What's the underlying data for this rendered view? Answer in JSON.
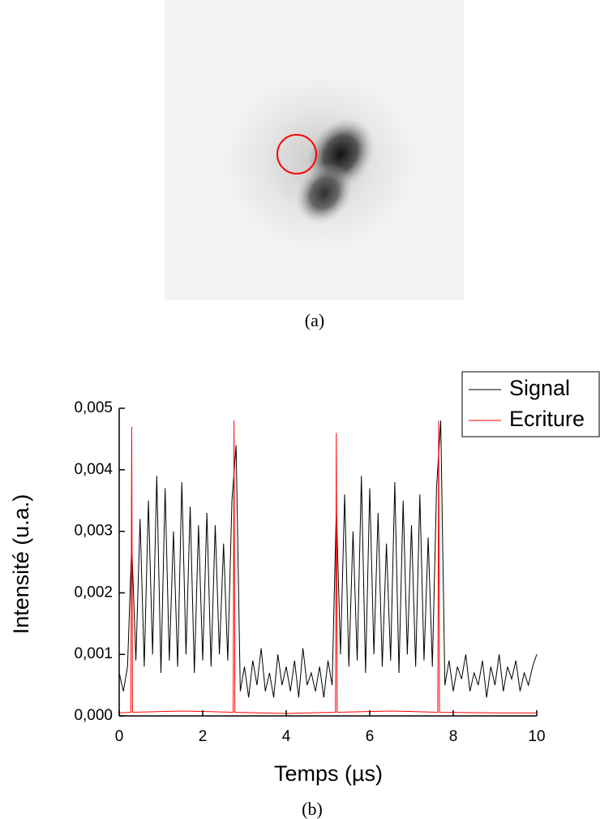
{
  "caption_a": "(a)",
  "chart_data": {
    "type": "line",
    "caption": "(b)",
    "xlabel": "Temps (µs)",
    "ylabel": "Intensité (u.a.)",
    "xlim": [
      0,
      10
    ],
    "xticks": [
      0,
      2,
      4,
      6,
      8,
      10
    ],
    "ylim": [
      0,
      0.005
    ],
    "yticks": [
      {
        "value": 0,
        "label": "0,000"
      },
      {
        "value": 0.001,
        "label": "0,001"
      },
      {
        "value": 0.002,
        "label": "0,002"
      },
      {
        "value": 0.003,
        "label": "0,003"
      },
      {
        "value": 0.004,
        "label": "0,004"
      },
      {
        "value": 0.005,
        "label": "0,005"
      }
    ],
    "legend": "upper right",
    "series": [
      {
        "name": "Signal",
        "color": "#000000",
        "x": [
          0,
          0.1,
          0.2,
          0.3,
          0.4,
          0.5,
          0.6,
          0.7,
          0.8,
          0.9,
          1,
          1.1,
          1.2,
          1.3,
          1.4,
          1.5,
          1.6,
          1.7,
          1.8,
          1.9,
          2,
          2.1,
          2.2,
          2.3,
          2.4,
          2.5,
          2.6,
          2.7,
          2.8,
          2.9,
          3,
          3.1,
          3.2,
          3.3,
          3.4,
          3.5,
          3.6,
          3.7,
          3.8,
          3.9,
          4,
          4.1,
          4.2,
          4.3,
          4.4,
          4.5,
          4.6,
          4.7,
          4.8,
          4.9,
          5,
          5.1,
          5.2,
          5.3,
          5.4,
          5.5,
          5.6,
          5.7,
          5.8,
          5.9,
          6,
          6.1,
          6.2,
          6.3,
          6.4,
          6.5,
          6.6,
          6.7,
          6.8,
          6.9,
          7,
          7.1,
          7.2,
          7.3,
          7.4,
          7.5,
          7.6,
          7.7,
          7.8,
          7.9,
          8,
          8.1,
          8.2,
          8.3,
          8.4,
          8.5,
          8.6,
          8.7,
          8.8,
          8.9,
          9,
          9.1,
          9.2,
          9.3,
          9.4,
          9.5,
          9.6,
          9.7,
          9.8,
          9.9,
          10
        ],
        "values": [
          0.0007,
          0.0004,
          0.0008,
          0.0028,
          0.0009,
          0.0032,
          0.0008,
          0.0035,
          0.001,
          0.0039,
          0.0007,
          0.0037,
          0.0009,
          0.003,
          0.0008,
          0.0038,
          0.001,
          0.0034,
          0.0007,
          0.0031,
          0.0009,
          0.0033,
          0.0008,
          0.0031,
          0.001,
          0.0028,
          0.0009,
          0.0035,
          0.0044,
          0.0004,
          0.0008,
          0.0003,
          0.0009,
          0.0005,
          0.0011,
          0.0004,
          0.0007,
          0.0003,
          0.001,
          0.0005,
          0.0008,
          0.0004,
          0.0009,
          0.0003,
          0.0011,
          0.0005,
          0.0007,
          0.0004,
          0.0008,
          0.0003,
          0.0009,
          0.0005,
          0.0034,
          0.001,
          0.0036,
          0.0008,
          0.003,
          0.0009,
          0.0039,
          0.0007,
          0.0037,
          0.001,
          0.0033,
          0.0008,
          0.0028,
          0.0009,
          0.0038,
          0.0007,
          0.0035,
          0.001,
          0.0031,
          0.0008,
          0.0036,
          0.0009,
          0.0029,
          0.0008,
          0.0037,
          0.0048,
          0.0005,
          0.0009,
          0.0004,
          0.0008,
          0.0006,
          0.001,
          0.0004,
          0.0007,
          0.0005,
          0.0009,
          0.0003,
          0.0008,
          0.0005,
          0.001,
          0.0004,
          0.0008,
          0.0006,
          0.0009,
          0.0004,
          0.0007,
          0.0005,
          0.0008,
          0.001
        ]
      },
      {
        "name": "Ecriture",
        "color": "#ff0000",
        "x": [
          0,
          0.28,
          0.3,
          0.32,
          1.5,
          2.73,
          2.75,
          2.77,
          4,
          5.18,
          5.2,
          5.22,
          6.5,
          7.63,
          7.65,
          7.67,
          9,
          10
        ],
        "values": [
          5e-05,
          6e-05,
          0.0047,
          6e-05,
          8e-05,
          6e-05,
          0.0048,
          6e-05,
          4e-05,
          6e-05,
          0.0046,
          6e-05,
          8e-05,
          6e-05,
          0.0048,
          6e-05,
          5e-05,
          5e-05
        ]
      }
    ]
  }
}
